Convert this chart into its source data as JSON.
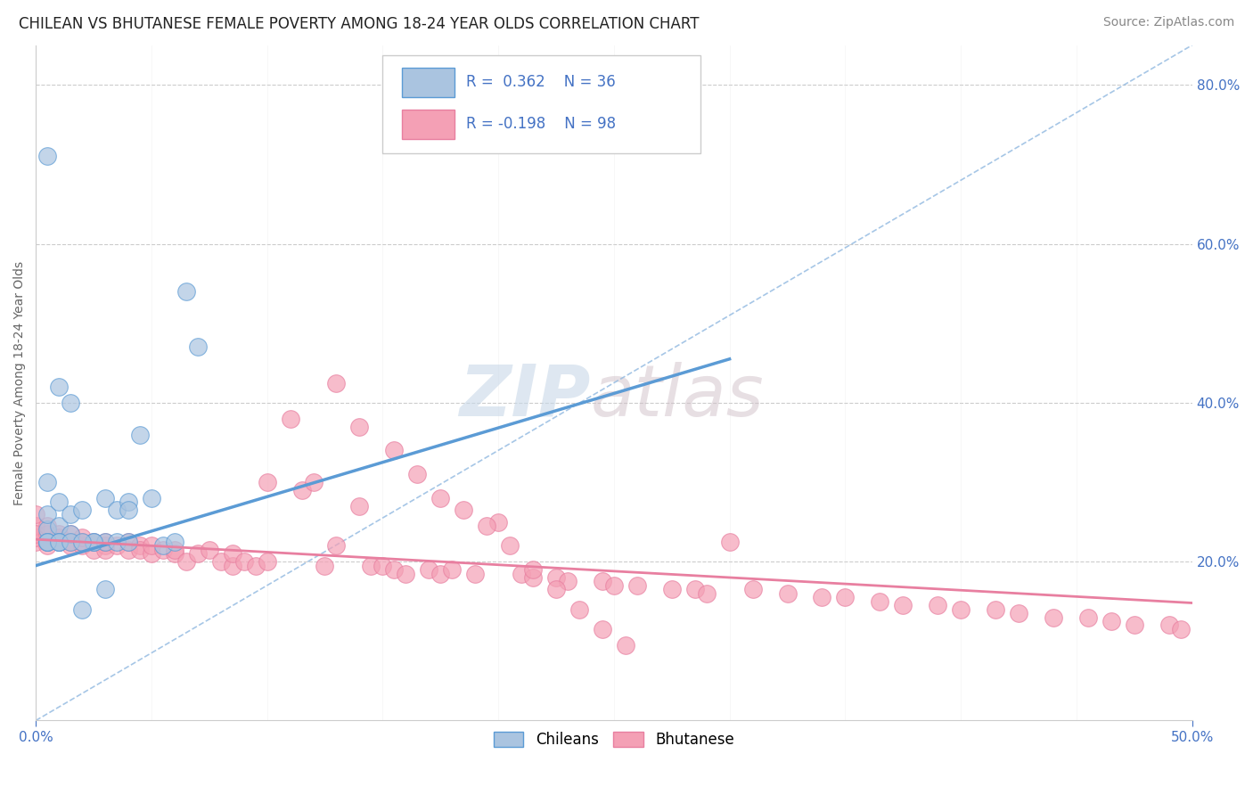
{
  "title": "CHILEAN VS BHUTANESE FEMALE POVERTY AMONG 18-24 YEAR OLDS CORRELATION CHART",
  "source_text": "Source: ZipAtlas.com",
  "ylabel": "Female Poverty Among 18-24 Year Olds",
  "xlim": [
    0.0,
    0.5
  ],
  "ylim": [
    0.0,
    0.85
  ],
  "xtick_positions": [
    0.0,
    0.5
  ],
  "xticklabels": [
    "0.0%",
    "50.0%"
  ],
  "yticks_right": [
    0.2,
    0.4,
    0.6,
    0.8
  ],
  "yticklabels_right": [
    "20.0%",
    "40.0%",
    "60.0%",
    "80.0%"
  ],
  "grid_color": "#cccccc",
  "background_color": "#ffffff",
  "chilean_color": "#aac4e0",
  "bhutanese_color": "#f4a0b5",
  "chilean_line_color": "#5b9bd5",
  "bhutanese_line_color": "#e87fa0",
  "diag_line_color": "#90b8e0",
  "legend_r_chilean": "R =  0.362",
  "legend_n_chilean": "N = 36",
  "legend_r_bhutanese": "R = -0.198",
  "legend_n_bhutanese": "N = 98",
  "watermark_zip": "ZIP",
  "watermark_atlas": "atlas",
  "title_fontsize": 12,
  "axis_label_fontsize": 10,
  "tick_fontsize": 11,
  "legend_fontsize": 12,
  "source_fontsize": 10,
  "chilean_trend_x": [
    0.0,
    0.3
  ],
  "chilean_trend_y": [
    0.195,
    0.455
  ],
  "bhutanese_trend_x": [
    0.0,
    0.5
  ],
  "bhutanese_trend_y": [
    0.228,
    0.148
  ],
  "chilean_scatter_x": [
    0.005,
    0.005,
    0.005,
    0.005,
    0.005,
    0.01,
    0.01,
    0.01,
    0.01,
    0.015,
    0.015,
    0.015,
    0.02,
    0.025,
    0.03,
    0.03,
    0.035,
    0.04,
    0.045,
    0.05,
    0.055,
    0.06,
    0.065,
    0.07,
    0.005,
    0.01,
    0.02,
    0.025,
    0.03,
    0.035,
    0.04,
    0.04,
    0.005,
    0.01,
    0.015,
    0.02
  ],
  "chilean_scatter_y": [
    0.225,
    0.24,
    0.26,
    0.3,
    0.71,
    0.225,
    0.245,
    0.275,
    0.42,
    0.235,
    0.26,
    0.4,
    0.265,
    0.225,
    0.225,
    0.28,
    0.265,
    0.275,
    0.36,
    0.28,
    0.22,
    0.225,
    0.54,
    0.47,
    0.225,
    0.225,
    0.14,
    0.225,
    0.165,
    0.225,
    0.225,
    0.265,
    0.225,
    0.225,
    0.225,
    0.225
  ],
  "bhutanese_scatter_x": [
    0.0,
    0.0,
    0.0,
    0.0,
    0.0,
    0.005,
    0.005,
    0.005,
    0.005,
    0.01,
    0.01,
    0.01,
    0.015,
    0.015,
    0.015,
    0.02,
    0.02,
    0.02,
    0.025,
    0.025,
    0.03,
    0.03,
    0.03,
    0.035,
    0.04,
    0.04,
    0.045,
    0.045,
    0.05,
    0.05,
    0.055,
    0.06,
    0.06,
    0.065,
    0.07,
    0.075,
    0.08,
    0.085,
    0.085,
    0.09,
    0.095,
    0.1,
    0.1,
    0.11,
    0.115,
    0.12,
    0.125,
    0.13,
    0.14,
    0.145,
    0.15,
    0.155,
    0.16,
    0.17,
    0.175,
    0.18,
    0.19,
    0.2,
    0.21,
    0.215,
    0.225,
    0.23,
    0.245,
    0.25,
    0.26,
    0.275,
    0.285,
    0.29,
    0.3,
    0.31,
    0.325,
    0.34,
    0.35,
    0.365,
    0.375,
    0.39,
    0.4,
    0.415,
    0.425,
    0.44,
    0.455,
    0.465,
    0.475,
    0.49,
    0.495,
    0.13,
    0.14,
    0.155,
    0.165,
    0.175,
    0.185,
    0.195,
    0.205,
    0.215,
    0.225,
    0.235,
    0.245,
    0.255
  ],
  "bhutanese_scatter_y": [
    0.225,
    0.23,
    0.245,
    0.26,
    0.235,
    0.225,
    0.22,
    0.235,
    0.245,
    0.225,
    0.23,
    0.235,
    0.225,
    0.22,
    0.235,
    0.22,
    0.225,
    0.23,
    0.215,
    0.225,
    0.22,
    0.215,
    0.225,
    0.22,
    0.215,
    0.225,
    0.22,
    0.215,
    0.21,
    0.22,
    0.215,
    0.21,
    0.215,
    0.2,
    0.21,
    0.215,
    0.2,
    0.195,
    0.21,
    0.2,
    0.195,
    0.3,
    0.2,
    0.38,
    0.29,
    0.3,
    0.195,
    0.22,
    0.27,
    0.195,
    0.195,
    0.19,
    0.185,
    0.19,
    0.185,
    0.19,
    0.185,
    0.25,
    0.185,
    0.18,
    0.18,
    0.175,
    0.175,
    0.17,
    0.17,
    0.165,
    0.165,
    0.16,
    0.225,
    0.165,
    0.16,
    0.155,
    0.155,
    0.15,
    0.145,
    0.145,
    0.14,
    0.14,
    0.135,
    0.13,
    0.13,
    0.125,
    0.12,
    0.12,
    0.115,
    0.425,
    0.37,
    0.34,
    0.31,
    0.28,
    0.265,
    0.245,
    0.22,
    0.19,
    0.165,
    0.14,
    0.115,
    0.095
  ]
}
